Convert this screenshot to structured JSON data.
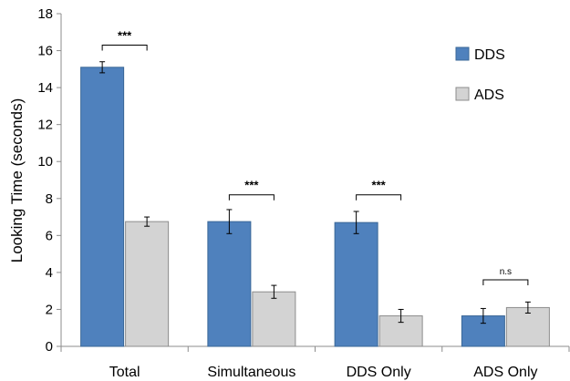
{
  "colors": {
    "DDS": "#4f81bd",
    "DDS_stroke": "#3a6797",
    "ADS": "#d3d3d3",
    "ADS_stroke": "#8c8c8c",
    "axis": "#8c8c8c",
    "bracket": "#000000"
  },
  "chart_data": {
    "type": "bar",
    "title": "",
    "xlabel": "",
    "ylabel": "Looking Time (seconds)",
    "ylim": [
      0,
      18
    ],
    "yticks": [
      "0",
      "2",
      "4",
      "6",
      "8",
      "10",
      "12",
      "14",
      "16",
      "18"
    ],
    "grid": false,
    "legend_position": "top-right",
    "categories": [
      "Total",
      "Simultaneous",
      "DDS Only",
      "ADS Only"
    ],
    "series": [
      {
        "name": "DDS",
        "values": [
          15.1,
          6.75,
          6.7,
          1.65
        ],
        "errors": [
          0.3,
          0.65,
          0.6,
          0.4
        ]
      },
      {
        "name": "ADS",
        "values": [
          6.75,
          2.95,
          1.65,
          2.1
        ],
        "errors": [
          0.25,
          0.35,
          0.35,
          0.3
        ]
      }
    ],
    "significance": [
      {
        "category": "Total",
        "label": "***",
        "y": 16.3
      },
      {
        "category": "Simultaneous",
        "label": "***",
        "y": 8.2
      },
      {
        "category": "DDS Only",
        "label": "***",
        "y": 8.2
      },
      {
        "category": "ADS Only",
        "label": "n.s",
        "y": 3.6
      }
    ]
  }
}
